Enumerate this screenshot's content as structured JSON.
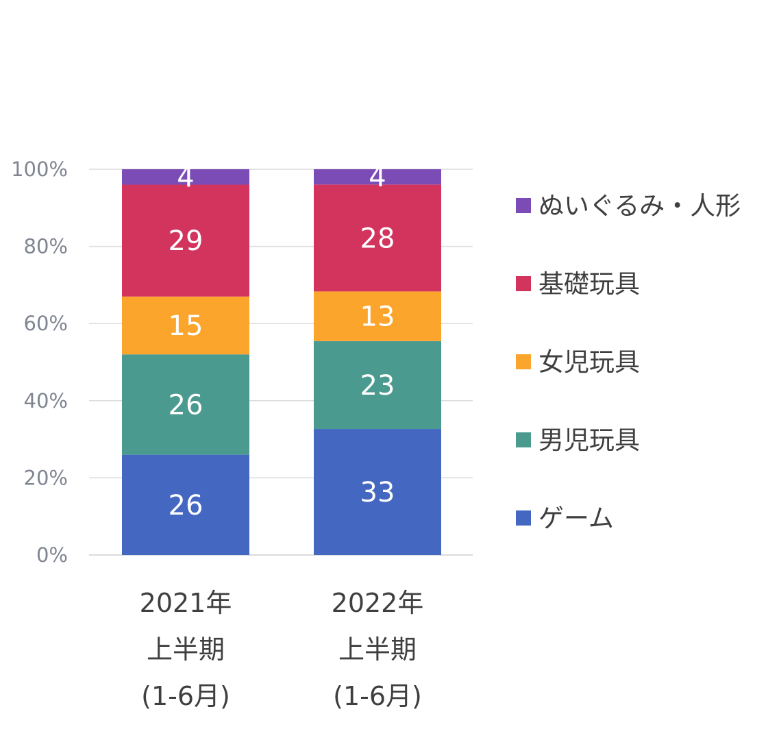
{
  "chart_data": {
    "type": "bar",
    "stacked": true,
    "percent_stacked": true,
    "categories": [
      [
        "2021年",
        "上半期",
        "(1-6月)"
      ],
      [
        "2022年",
        "上半期",
        "(1-6月)"
      ]
    ],
    "series": [
      {
        "name": "ゲーム",
        "values": [
          26,
          33
        ],
        "color": "#4468c1"
      },
      {
        "name": "男児玩具",
        "values": [
          26,
          23
        ],
        "color": "#4a9a8f"
      },
      {
        "name": "女児玩具",
        "values": [
          15,
          13
        ],
        "color": "#fca52d"
      },
      {
        "name": "基礎玩具",
        "values": [
          29,
          28
        ],
        "color": "#d3345e"
      },
      {
        "name": "ぬいぐるみ・人形",
        "values": [
          4,
          4
        ],
        "color": "#7c4cb6"
      }
    ],
    "yaxis": {
      "ticks": [
        "0%",
        "20%",
        "40%",
        "60%",
        "80%",
        "100%"
      ],
      "ylim": [
        0,
        100
      ]
    },
    "title": "",
    "xlabel": "",
    "ylabel": "",
    "grid": true,
    "legend_position": "right",
    "legend_order": [
      "ぬいぐるみ・人形",
      "基礎玩具",
      "女児玩具",
      "男児玩具",
      "ゲーム"
    ]
  }
}
